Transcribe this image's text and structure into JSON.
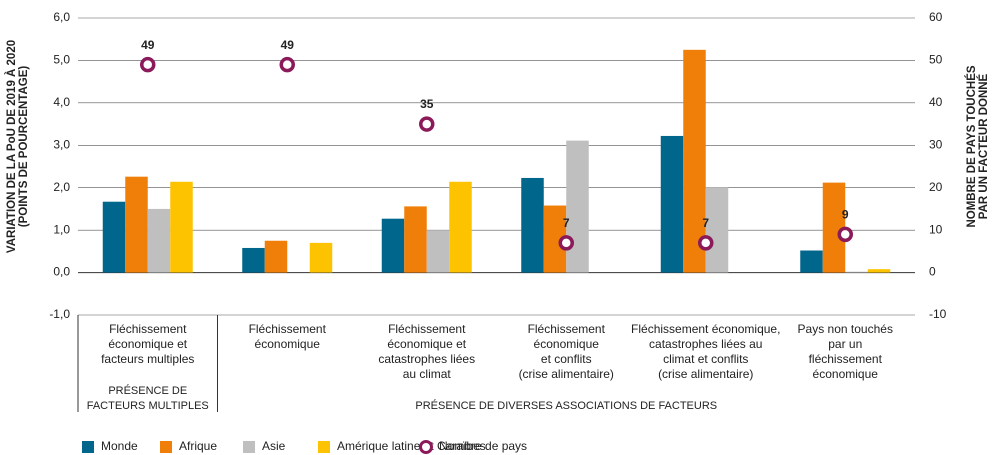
{
  "chart_data": {
    "type": "bar",
    "categories": [
      [
        "Fléchissement",
        "économique et",
        "facteurs multiples"
      ],
      [
        "Fléchissement",
        "économique"
      ],
      [
        "Fléchissement",
        "économique et",
        "catastrophes liées",
        "au climat"
      ],
      [
        "Fléchissement",
        "économique",
        "et conflits",
        "(crise alimentaire)"
      ],
      [
        "Fléchissement économique,",
        "catastrophes liées au",
        "climat et conflits",
        "(crise alimentaire)"
      ],
      [
        "Pays non touchés",
        "par un",
        "fléchissement",
        "économique"
      ]
    ],
    "group_labels": [
      [
        "PRÉSENCE DE",
        "FACTEURS MULTIPLES"
      ],
      [
        "PRÉSENCE DE DIVERSES ASSOCIATIONS DE FACTEURS"
      ]
    ],
    "series": [
      {
        "name": "Monde",
        "color": "#00668c",
        "values": [
          1.67,
          0.58,
          1.27,
          2.23,
          3.22,
          0.52
        ]
      },
      {
        "name": "Afrique",
        "color": "#f07f09",
        "values": [
          2.26,
          0.75,
          1.56,
          1.58,
          5.25,
          2.12
        ]
      },
      {
        "name": "Asie",
        "color": "#bfbfbf",
        "values": [
          1.5,
          null,
          1.0,
          3.11,
          2.0,
          0.02
        ]
      },
      {
        "name": "Amérique latine et Caraïbes",
        "color": "#fdc300",
        "values": [
          2.14,
          0.7,
          2.14,
          null,
          null,
          0.08
        ]
      },
      {
        "name": "Nombre de pays",
        "color": "#8b1a5a",
        "axis": "y2",
        "type": "scatter",
        "values": [
          49,
          49,
          35,
          7,
          7,
          9
        ]
      }
    ],
    "ylabel": [
      "VARIATION DE LA PoU DE 2019 À 2020",
      "(POINTS DE POURCENTAGE)"
    ],
    "y2label": [
      "NOMBRE DE PAYS TOUCHÉS",
      "PAR UN FACTEUR DONNÉ"
    ],
    "ylim": [
      -1,
      6
    ],
    "yticks": [
      {
        "value": -1,
        "label": "-1,0"
      },
      {
        "value": 0,
        "label": "0,0"
      },
      {
        "value": 1,
        "label": "1,0"
      },
      {
        "value": 2,
        "label": "2,0"
      },
      {
        "value": 3,
        "label": "3,0"
      },
      {
        "value": 4,
        "label": "4,0"
      },
      {
        "value": 5,
        "label": "5,0"
      },
      {
        "value": 6,
        "label": "6,0"
      }
    ],
    "y2lim": [
      -10,
      60
    ],
    "y2ticks": [
      -10,
      0,
      10,
      20,
      30,
      40,
      50,
      60
    ],
    "grid": true
  }
}
